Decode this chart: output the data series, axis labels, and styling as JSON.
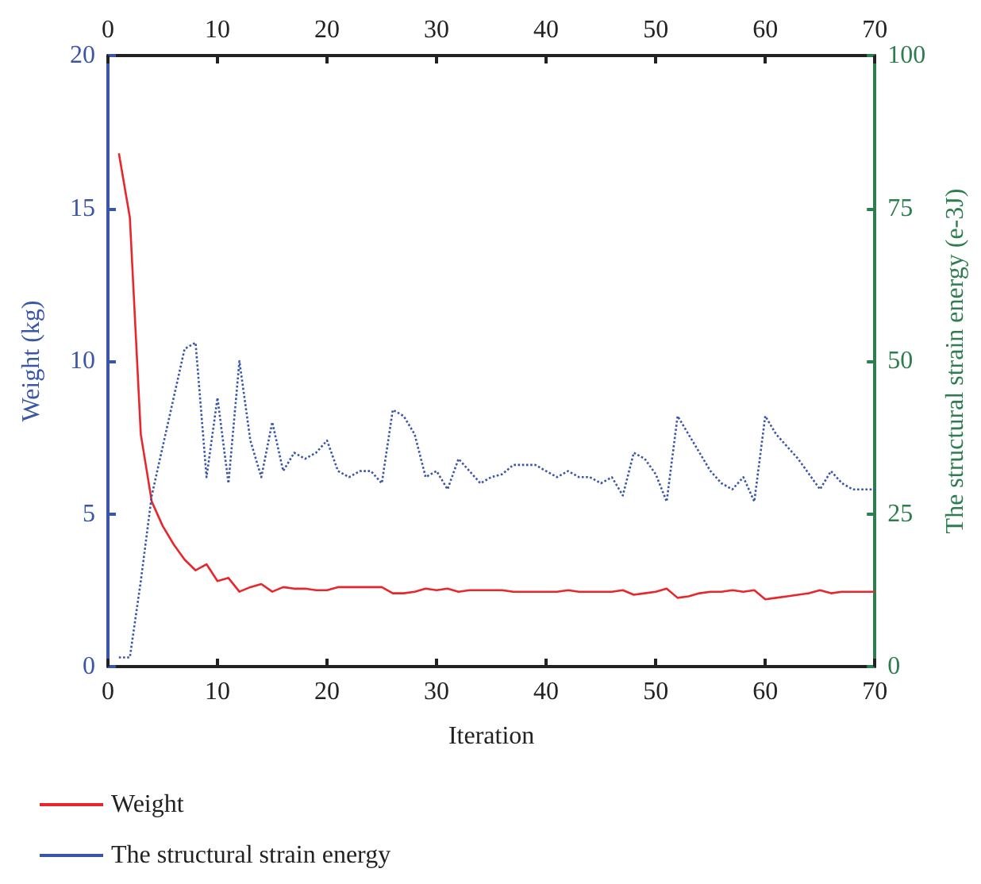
{
  "chart_data": {
    "type": "line",
    "xlabel": "Iteration",
    "ylabel": "Weight (kg)",
    "y2label": "The structural strain energy (e-3J)",
    "x": [
      1,
      2,
      3,
      4,
      5,
      6,
      7,
      8,
      9,
      10,
      11,
      12,
      13,
      14,
      15,
      16,
      17,
      18,
      19,
      20,
      21,
      22,
      23,
      24,
      25,
      26,
      27,
      28,
      29,
      30,
      31,
      32,
      33,
      34,
      35,
      36,
      37,
      38,
      39,
      40,
      41,
      42,
      43,
      44,
      45,
      46,
      47,
      48,
      49,
      50,
      51,
      52,
      53,
      54,
      55,
      56,
      57,
      58,
      59,
      60,
      61,
      62,
      63,
      64,
      65,
      66,
      67,
      68,
      69,
      70
    ],
    "series": [
      {
        "name": "Weight",
        "color": "#e8262b",
        "line_style": "solid",
        "values": [
          16.8,
          14.7,
          7.6,
          5.4,
          4.6,
          4.0,
          3.5,
          3.15,
          3.35,
          2.8,
          2.9,
          2.45,
          2.6,
          2.7,
          2.45,
          2.6,
          2.55,
          2.55,
          2.5,
          2.5,
          2.6,
          2.6,
          2.6,
          2.6,
          2.6,
          2.4,
          2.4,
          2.45,
          2.55,
          2.5,
          2.55,
          2.45,
          2.5,
          2.5,
          2.5,
          2.5,
          2.45,
          2.45,
          2.45,
          2.45,
          2.45,
          2.5,
          2.45,
          2.45,
          2.45,
          2.45,
          2.5,
          2.35,
          2.4,
          2.45,
          2.55,
          2.25,
          2.3,
          2.4,
          2.45,
          2.45,
          2.5,
          2.45,
          2.5,
          2.2,
          2.25,
          2.3,
          2.35,
          2.4,
          2.5,
          2.4,
          2.45,
          2.45,
          2.45,
          2.45
        ]
      },
      {
        "name": "The structural strain energy",
        "color": "#3a56a8",
        "line_style": "dotted",
        "axis": "y2",
        "values": [
          1.5,
          1.5,
          14,
          28,
          36,
          44,
          52,
          53,
          31,
          44,
          30,
          50,
          37,
          31,
          40,
          32,
          35,
          34,
          35,
          37,
          32,
          31,
          32,
          32,
          30,
          42,
          41,
          38,
          31,
          32,
          29,
          34,
          32,
          30,
          31,
          31.5,
          33,
          33,
          33,
          32,
          31,
          32,
          31,
          31,
          30,
          31,
          28,
          35,
          34,
          31.5,
          27,
          41,
          38,
          35,
          32,
          30,
          29,
          31,
          27,
          41,
          38,
          36,
          34,
          31.5,
          29,
          32,
          30,
          29,
          29,
          29
        ]
      }
    ],
    "xlim": [
      0,
      70
    ],
    "xticks": [
      0,
      10,
      20,
      30,
      40,
      50,
      60,
      70
    ],
    "x2lim": [
      0,
      70
    ],
    "x2ticks": [
      0,
      10,
      20,
      30,
      40,
      50,
      60,
      70
    ],
    "ylim": [
      0,
      20
    ],
    "yticks": [
      0,
      5,
      10,
      15,
      20
    ],
    "y2lim": [
      0,
      100
    ],
    "y2ticks": [
      0,
      25,
      50,
      75,
      100
    ],
    "grid": false,
    "legend": "bottom left",
    "marker": "none"
  }
}
